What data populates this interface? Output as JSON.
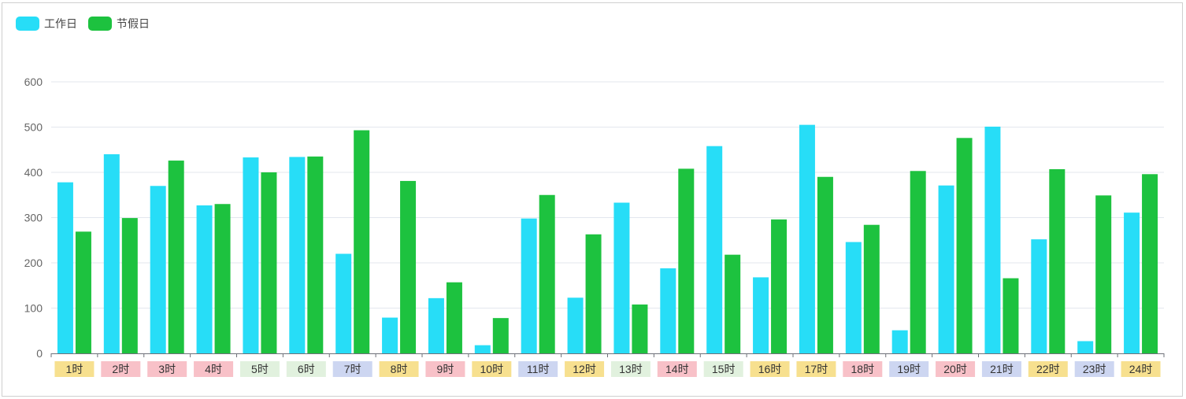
{
  "chart_data": {
    "type": "bar",
    "categories": [
      "1时",
      "2时",
      "3时",
      "4时",
      "5时",
      "6时",
      "7时",
      "8时",
      "9时",
      "10时",
      "11时",
      "12时",
      "13时",
      "14时",
      "15时",
      "16时",
      "17时",
      "18时",
      "19时",
      "20时",
      "21时",
      "22时",
      "23时",
      "24时"
    ],
    "series": [
      {
        "name": "工作日",
        "color": "#27DDF7",
        "values": [
          378,
          440,
          370,
          327,
          433,
          434,
          220,
          79,
          122,
          18,
          298,
          123,
          333,
          188,
          458,
          168,
          505,
          246,
          51,
          371,
          501,
          252,
          27,
          311
        ]
      },
      {
        "name": "节假日",
        "color": "#1DC23F",
        "values": [
          269,
          299,
          426,
          330,
          400,
          435,
          493,
          381,
          157,
          78,
          350,
          263,
          108,
          408,
          218,
          296,
          390,
          284,
          403,
          476,
          166,
          407,
          349,
          396
        ]
      }
    ],
    "category_label_colors": [
      "#F7E08F",
      "#F8C1C8",
      "#F8C1C8",
      "#F8C1C8",
      "#E1F1DE",
      "#E1F1DE",
      "#CDD6F1",
      "#F7E08F",
      "#F8C1C8",
      "#F7E08F",
      "#CDD6F1",
      "#F7E08F",
      "#E1F1DE",
      "#F8C1C8",
      "#E1F1DE",
      "#F7E08F",
      "#F7E08F",
      "#F8C1C8",
      "#CDD6F1",
      "#F8C1C8",
      "#CDD6F1",
      "#F7E08F",
      "#CDD6F1",
      "#F7E08F"
    ],
    "y_ticks": [
      0,
      100,
      200,
      300,
      400,
      500,
      600
    ],
    "ylim": [
      0,
      600
    ],
    "title": "",
    "xlabel": "",
    "ylabel": "",
    "grid": true,
    "legend_position": "top-left"
  },
  "legend": {
    "items": [
      {
        "label": "工作日",
        "color": "#27DDF7"
      },
      {
        "label": "节假日",
        "color": "#1DC23F"
      }
    ]
  }
}
